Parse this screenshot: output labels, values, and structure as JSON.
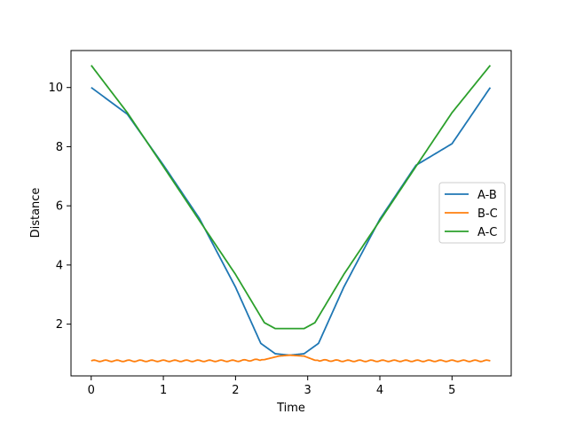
{
  "chart_data": {
    "type": "line",
    "title": "",
    "xlabel": "Time",
    "ylabel": "Distance",
    "xlim": [
      -0.28,
      5.82
    ],
    "ylim": [
      0.25,
      11.25
    ],
    "xticks": [
      0,
      1,
      2,
      3,
      4,
      5
    ],
    "yticks": [
      2,
      4,
      6,
      8,
      10
    ],
    "grid": false,
    "legend_position": "right",
    "series": [
      {
        "name": "A-B",
        "color": "#1f77b4",
        "x": [
          0,
          0.5,
          1.0,
          1.5,
          2.0,
          2.35,
          2.55,
          2.75,
          2.95,
          3.15,
          3.5,
          4.0,
          4.5,
          5.0,
          5.53
        ],
        "y": [
          10.0,
          9.1,
          7.38,
          5.57,
          3.25,
          1.35,
          1.0,
          0.95,
          1.0,
          1.35,
          3.25,
          5.55,
          7.37,
          8.1,
          10.0
        ]
      },
      {
        "name": "B-C",
        "color": "#ff7f0e",
        "x": [
          0,
          0.5,
          1.0,
          1.5,
          2.0,
          2.4,
          2.6,
          2.75,
          2.95,
          3.1,
          3.5,
          4.0,
          4.5,
          5.0,
          5.53
        ],
        "y": [
          0.76,
          0.76,
          0.76,
          0.76,
          0.76,
          0.8,
          0.92,
          0.95,
          0.92,
          0.78,
          0.76,
          0.76,
          0.76,
          0.76,
          0.76
        ]
      },
      {
        "name": "A-C",
        "color": "#2ca02c",
        "x": [
          0,
          0.5,
          1.0,
          1.5,
          2.0,
          2.4,
          2.55,
          2.75,
          2.95,
          3.1,
          3.5,
          4.0,
          4.5,
          5.0,
          5.53
        ],
        "y": [
          10.75,
          9.15,
          7.33,
          5.5,
          3.68,
          2.05,
          1.85,
          1.85,
          1.85,
          2.05,
          3.68,
          5.5,
          7.33,
          9.15,
          10.75
        ]
      }
    ]
  }
}
